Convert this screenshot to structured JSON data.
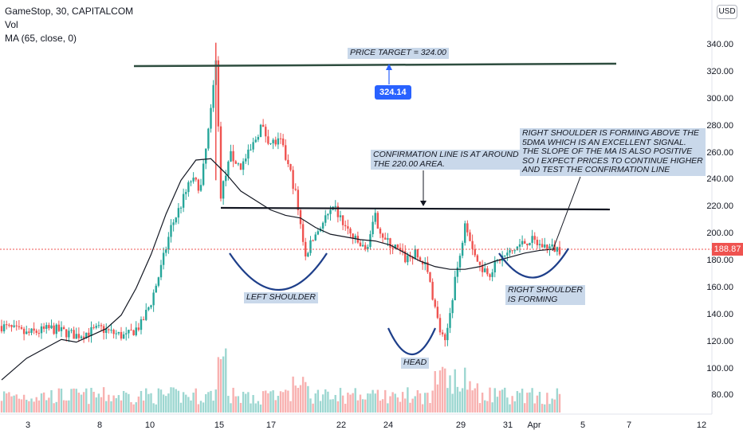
{
  "legend": {
    "symbol": "GameStop, 30, CAPITALCOM",
    "volume": "Vol",
    "ma": "MA (65, close, 0)"
  },
  "currency": "USD",
  "current_price": "188.87",
  "target_badge": "324.14",
  "annotations": {
    "price_target": "PRICE TARGET = 324.00",
    "confirmation": "CONFIRMATION LINE IS AT AROUND\nTHE 220.00 AREA.",
    "right_shoulder_note": "RIGHT SHOULDER IS FORMING ABOVE THE\n5DMA WHICH IS AN EXCELLENT SIGNAL.\nTHE SLOPE OF THE MA IS ALSO POSITIVE\nSO I EXPECT PRICES TO CONTINUE HIGHER\nAND TEST THE CONFIRMATION LINE",
    "left_shoulder": "LEFT SHOULDER",
    "head": "HEAD",
    "right_shoulder": "RIGHT SHOULDER\nIS FORMING"
  },
  "colors": {
    "up": "#26a69a",
    "down": "#ef5350",
    "ma": "#131722",
    "curve": "#1e3f8a",
    "target_line": "#2e4d3f",
    "badge": "#2962ff"
  },
  "chart_data": {
    "type": "candlestick",
    "title": "GameStop, 30, CAPITALCOM",
    "y_ticks": [
      "340.00",
      "320.00",
      "300.00",
      "280.00",
      "260.00",
      "240.00",
      "220.00",
      "200.00",
      "180.00",
      "160.00",
      "140.00",
      "120.00",
      "100.00",
      "80.00"
    ],
    "ylim": [
      68,
      355
    ],
    "x_ticks": [
      "3",
      "8",
      "10",
      "15",
      "17",
      "22",
      "24",
      "29",
      "31",
      "Apr",
      "5",
      "7",
      "12"
    ],
    "price_path": [
      [
        0,
        132
      ],
      [
        5,
        126
      ],
      [
        10,
        130
      ],
      [
        15,
        125
      ],
      [
        18,
        128
      ],
      [
        20,
        130
      ],
      [
        22,
        127
      ],
      [
        25,
        124
      ],
      [
        28,
        133
      ],
      [
        30,
        150
      ],
      [
        32,
        175
      ],
      [
        34,
        205
      ],
      [
        36,
        222
      ],
      [
        38,
        240
      ],
      [
        40,
        235
      ],
      [
        42,
        290
      ],
      [
        43,
        328
      ],
      [
        44,
        230
      ],
      [
        46,
        258
      ],
      [
        48,
        250
      ],
      [
        50,
        262
      ],
      [
        52,
        280
      ],
      [
        54,
        268
      ],
      [
        56,
        268
      ],
      [
        58,
        245
      ],
      [
        59,
        230
      ],
      [
        61,
        185
      ],
      [
        63,
        200
      ],
      [
        65,
        212
      ],
      [
        67,
        218
      ],
      [
        69,
        205
      ],
      [
        71,
        195
      ],
      [
        73,
        188
      ],
      [
        75,
        212
      ],
      [
        77,
        195
      ],
      [
        79,
        190
      ],
      [
        81,
        182
      ],
      [
        83,
        185
      ],
      [
        85,
        176
      ],
      [
        86,
        165
      ],
      [
        87,
        145
      ],
      [
        88,
        128
      ],
      [
        89,
        118
      ],
      [
        90,
        142
      ],
      [
        91,
        168
      ],
      [
        92,
        182
      ],
      [
        93,
        212
      ],
      [
        94,
        198
      ],
      [
        95,
        185
      ],
      [
        96,
        176
      ],
      [
        98,
        172
      ],
      [
        100,
        182
      ],
      [
        102,
        186
      ],
      [
        104,
        192
      ],
      [
        106,
        196
      ],
      [
        108,
        192
      ],
      [
        110,
        190
      ],
      [
        112,
        188.87
      ]
    ],
    "ma_path": [
      [
        0,
        92
      ],
      [
        5,
        108
      ],
      [
        10,
        118
      ],
      [
        12,
        122
      ],
      [
        15,
        120
      ],
      [
        18,
        125
      ],
      [
        21,
        130
      ],
      [
        24,
        140
      ],
      [
        27,
        160
      ],
      [
        30,
        185
      ],
      [
        33,
        215
      ],
      [
        36,
        240
      ],
      [
        39,
        255
      ],
      [
        42,
        256
      ],
      [
        45,
        245
      ],
      [
        48,
        232
      ],
      [
        51,
        225
      ],
      [
        54,
        218
      ],
      [
        57,
        214
      ],
      [
        60,
        212
      ],
      [
        63,
        205
      ],
      [
        66,
        200
      ],
      [
        69,
        198
      ],
      [
        72,
        196
      ],
      [
        75,
        195
      ],
      [
        78,
        192
      ],
      [
        81,
        186
      ],
      [
        84,
        180
      ],
      [
        87,
        176
      ],
      [
        90,
        174
      ],
      [
        93,
        174
      ],
      [
        96,
        176
      ],
      [
        99,
        180
      ],
      [
        102,
        183
      ],
      [
        105,
        186
      ],
      [
        108,
        188
      ],
      [
        111,
        189
      ]
    ],
    "volume_range": [
      15,
      75
    ],
    "target_price": 324.0,
    "confirmation_level": 220.0,
    "last_price": 188.87
  }
}
